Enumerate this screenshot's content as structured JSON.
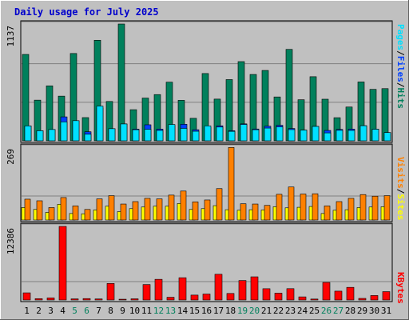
{
  "title": "Daily usage for July 2025",
  "colors": {
    "background": "#c0c0c0",
    "frame": "#ffffff",
    "border": "#000000",
    "hits": "#00805c",
    "files": "#0040ff",
    "pages": "#00e0ff",
    "visits": "#ff8000",
    "sites": "#ffff00",
    "kbytes": "#ff0000",
    "weekend_label": "#00805c",
    "weekday_label": "#000000"
  },
  "chart_data": [
    {
      "type": "bar",
      "name": "hits-files-pages",
      "ymax_label": "1137",
      "ylim": [
        0,
        1137
      ],
      "categories": [
        "1",
        "2",
        "3",
        "4",
        "5",
        "6",
        "7",
        "8",
        "9",
        "10",
        "11",
        "12",
        "13",
        "14",
        "15",
        "16",
        "17",
        "18",
        "19",
        "20",
        "21",
        "22",
        "23",
        "24",
        "25",
        "26",
        "27",
        "28",
        "29",
        "30",
        "31"
      ],
      "weekend_days": [
        "5",
        "6",
        "12",
        "13",
        "19",
        "20",
        "26",
        "27"
      ],
      "legend": [
        {
          "label": "Hits",
          "color": "#00805c"
        },
        {
          "label": "Files",
          "color": "#0040ff"
        },
        {
          "label": "Pages",
          "color": "#00e0ff"
        }
      ],
      "series": [
        {
          "name": "Hits",
          "values": [
            841,
            396,
            535,
            435,
            850,
            226,
            979,
            383,
            1137,
            303,
            416,
            450,
            571,
            394,
            219,
            655,
            406,
            596,
            771,
            646,
            685,
            427,
            890,
            400,
            624,
            405,
            225,
            329,
            573,
            501,
            508
          ]
        },
        {
          "name": "Files",
          "values": [
            145,
            98,
            110,
            233,
            196,
            88,
            320,
            118,
            164,
            114,
            156,
            114,
            150,
            161,
            108,
            130,
            146,
            98,
            165,
            115,
            142,
            151,
            120,
            104,
            140,
            101,
            111,
            114,
            147,
            114,
            80
          ]
        },
        {
          "name": "Pages",
          "values": [
            145,
            98,
            110,
            184,
            196,
            64,
            338,
            118,
            164,
            108,
            112,
            101,
            159,
            121,
            93,
            145,
            134,
            92,
            159,
            108,
            124,
            135,
            109,
            104,
            140,
            77,
            102,
            101,
            147,
            113,
            80
          ]
        }
      ]
    },
    {
      "type": "bar",
      "name": "sites-visits",
      "ymax_label": "269",
      "ylim": [
        0,
        269
      ],
      "legend": [
        {
          "label": "Sites",
          "color": "#ffff00"
        },
        {
          "label": "Visits",
          "color": "#ff8000"
        }
      ],
      "series": [
        {
          "name": "Sites",
          "values": [
            46,
            39,
            28,
            58,
            24,
            23,
            37,
            51,
            31,
            42,
            48,
            51,
            51,
            61,
            39,
            42,
            53,
            38,
            36,
            38,
            37,
            49,
            45,
            47,
            50,
            24,
            36,
            38,
            46,
            48,
            49
          ]
        },
        {
          "name": "Visits",
          "values": [
            77,
            71,
            46,
            83,
            52,
            39,
            78,
            90,
            59,
            68,
            80,
            78,
            92,
            107,
            67,
            74,
            116,
            268,
            60,
            59,
            54,
            95,
            122,
            96,
            97,
            52,
            68,
            80,
            94,
            88,
            90
          ]
        }
      ]
    },
    {
      "type": "bar",
      "name": "kbytes",
      "ymax_label": "12386",
      "ylim": [
        0,
        12386
      ],
      "legend": [
        {
          "label": "KBytes",
          "color": "#ff0000"
        }
      ],
      "series": [
        {
          "name": "KBytes",
          "values": [
            1205,
            225,
            350,
            12386,
            190,
            240,
            180,
            2780,
            130,
            200,
            2600,
            3480,
            460,
            3750,
            825,
            1000,
            4330,
            1100,
            3280,
            3900,
            1900,
            1150,
            1910,
            525,
            160,
            2960,
            1490,
            2130,
            270,
            755,
            1410
          ]
        }
      ]
    }
  ]
}
